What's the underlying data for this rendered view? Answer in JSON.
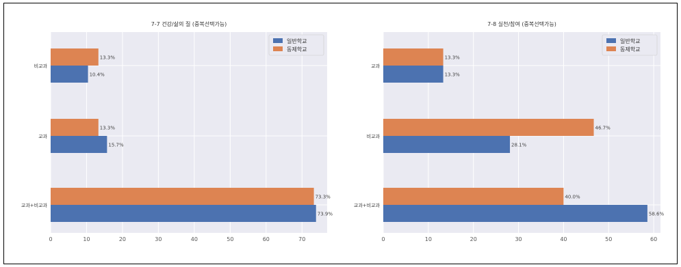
{
  "chart_data": [
    {
      "type": "bar",
      "orientation": "horizontal",
      "title": "7-7 건강/삶의 질 (중복선택가능)",
      "categories": [
        "비교과",
        "교과",
        "교과+비교과"
      ],
      "series": [
        {
          "name": "일반학교",
          "color": "#4c72b0",
          "values": [
            10.4,
            15.7,
            73.9
          ],
          "labels": [
            "10.4%",
            "15.7%",
            "73.9%"
          ]
        },
        {
          "name": "동제학교",
          "color": "#dd8452",
          "values": [
            13.3,
            13.3,
            73.3
          ],
          "labels": [
            "13.3%",
            "13.3%",
            "73.3%"
          ]
        }
      ],
      "xlim": [
        0,
        77
      ],
      "xticks": [
        0,
        10,
        20,
        30,
        40,
        50,
        60,
        70
      ],
      "grid": true,
      "legend_position": "top-right"
    },
    {
      "type": "bar",
      "orientation": "horizontal",
      "title": "7-8 실천/참여 (중복선택가능)",
      "categories": [
        "교과",
        "비교과",
        "교과+비교과"
      ],
      "series": [
        {
          "name": "일반학교",
          "color": "#4c72b0",
          "values": [
            13.3,
            28.1,
            58.6
          ],
          "labels": [
            "13.3%",
            "28.1%",
            "58.6%"
          ]
        },
        {
          "name": "동제학교",
          "color": "#dd8452",
          "values": [
            13.3,
            46.7,
            40.0
          ],
          "labels": [
            "13.3%",
            "46.7%",
            "40.0%"
          ]
        }
      ],
      "xlim": [
        0,
        61.5
      ],
      "xticks": [
        0,
        10,
        20,
        30,
        40,
        50,
        60
      ],
      "grid": true,
      "legend_position": "top-right"
    }
  ]
}
